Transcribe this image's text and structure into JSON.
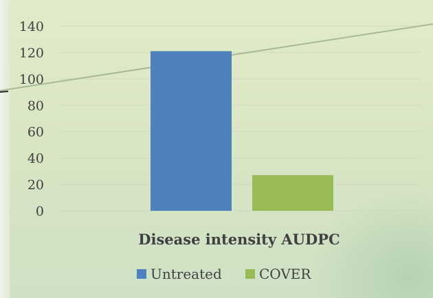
{
  "chart_data": {
    "type": "bar",
    "categories": [
      "Disease intensity AUDPC"
    ],
    "series": [
      {
        "name": "Untreated",
        "values": [
          121
        ],
        "color": "#4f81bd"
      },
      {
        "name": "COVER",
        "values": [
          27
        ],
        "color": "#9bbb59"
      }
    ],
    "xlabel": "Disease intensity AUDPC",
    "ylim": [
      0,
      140
    ],
    "yticks": [
      0,
      20,
      40,
      60,
      80,
      100,
      120,
      140
    ],
    "grid": true,
    "legend": "bottom",
    "gridline_color": "#cfd9c0"
  }
}
